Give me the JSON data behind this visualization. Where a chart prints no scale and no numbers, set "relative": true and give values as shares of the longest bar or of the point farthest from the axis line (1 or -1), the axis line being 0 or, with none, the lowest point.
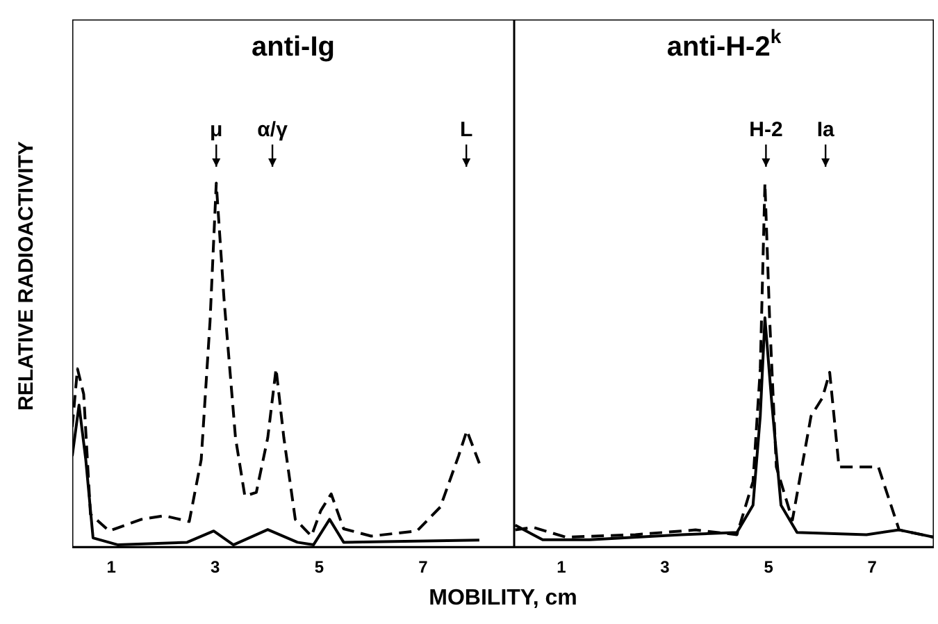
{
  "chart_data": [
    {
      "type": "line",
      "title": "anti-Ig",
      "xlabel": "MOBILITY, cm",
      "ylabel": "RELATIVE RADIOACTIVITY",
      "relative": true,
      "xlim": [
        0.25,
        8.75
      ],
      "xticks": [
        1,
        3,
        5,
        7
      ],
      "tick_labels": "x",
      "grid": false,
      "legend": false,
      "marker": "none",
      "annotations": [
        {
          "text": "μ",
          "x": 3.02
        },
        {
          "text": "α/γ",
          "x": 4.1
        },
        {
          "text": "L",
          "x": 7.83
        }
      ],
      "series": [
        {
          "color": "#000000",
          "line_style": "dashed",
          "x": [
            0.25,
            0.35,
            0.47,
            0.6,
            0.96,
            1.58,
            2.02,
            2.5,
            2.73,
            2.9,
            3.02,
            3.17,
            3.39,
            3.57,
            3.79,
            4.01,
            4.17,
            4.32,
            4.54,
            4.85,
            5.03,
            5.23,
            5.47,
            6.0,
            6.88,
            7.33,
            7.68,
            7.84,
            8.08
          ],
          "values": [
            0.33,
            0.49,
            0.42,
            0.09,
            0.044,
            0.076,
            0.086,
            0.07,
            0.24,
            0.62,
            1.0,
            0.68,
            0.3,
            0.14,
            0.15,
            0.3,
            0.49,
            0.3,
            0.076,
            0.03,
            0.1,
            0.146,
            0.05,
            0.03,
            0.044,
            0.11,
            0.25,
            0.32,
            0.23
          ]
        },
        {
          "color": "#000000",
          "line_style": "solid",
          "x": [
            0.25,
            0.38,
            0.51,
            0.65,
            1.13,
            2.46,
            2.97,
            3.35,
            4.01,
            4.58,
            4.89,
            5.2,
            5.47,
            6.44,
            8.08
          ],
          "values": [
            0.25,
            0.39,
            0.24,
            0.025,
            0.006,
            0.013,
            0.044,
            0.006,
            0.048,
            0.013,
            0.006,
            0.076,
            0.013,
            0.015,
            0.019
          ]
        }
      ]
    },
    {
      "type": "line",
      "title": "anti-H-2$^{k}$",
      "relative": true,
      "xlim": [
        0.09,
        8.19
      ],
      "xticks": [
        1,
        3,
        5,
        7
      ],
      "tick_labels": "x",
      "grid": false,
      "legend": false,
      "marker": "none",
      "annotations": [
        {
          "text": "H-2",
          "x": 4.95
        },
        {
          "text": "Ia",
          "x": 6.1
        }
      ],
      "series": [
        {
          "color": "#000000",
          "line_style": "dashed",
          "x": [
            0.11,
            0.46,
            1.09,
            2.43,
            3.59,
            4.39,
            4.7,
            4.84,
            4.93,
            5.02,
            5.15,
            5.46,
            5.82,
            6.04,
            6.18,
            6.36,
            6.54,
            7.12,
            7.52,
            8.19
          ],
          "values": [
            0.047,
            0.054,
            0.027,
            0.034,
            0.047,
            0.034,
            0.18,
            0.49,
            1.0,
            0.63,
            0.22,
            0.074,
            0.36,
            0.41,
            0.48,
            0.22,
            0.22,
            0.22,
            0.047,
            0.027
          ]
        },
        {
          "color": "#000000",
          "line_style": "solid",
          "x": [
            0.11,
            0.64,
            1.54,
            3.32,
            4.39,
            4.7,
            4.84,
            4.93,
            5.06,
            5.24,
            5.55,
            6.89,
            7.52,
            8.19
          ],
          "values": [
            0.06,
            0.02,
            0.02,
            0.034,
            0.04,
            0.115,
            0.36,
            0.63,
            0.4,
            0.115,
            0.04,
            0.034,
            0.047,
            0.027
          ]
        }
      ]
    }
  ]
}
